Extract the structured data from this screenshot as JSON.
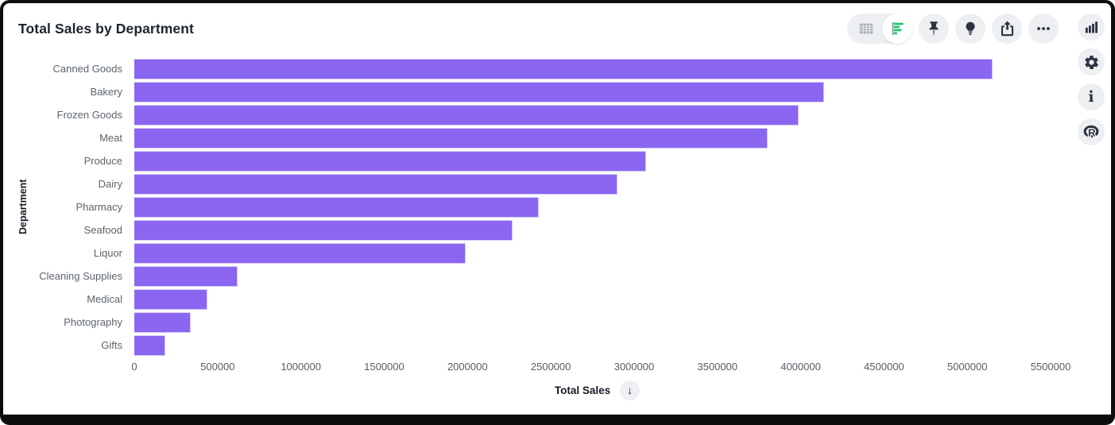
{
  "card": {
    "title": "Total Sales by Department"
  },
  "toolbar": {
    "view_toggle": [
      {
        "icon": "table-view-icon",
        "selected": false
      },
      {
        "icon": "bar-chart-view-icon",
        "selected": true
      }
    ],
    "buttons": [
      {
        "icon": "pin-icon"
      },
      {
        "icon": "lightbulb-icon"
      },
      {
        "icon": "share-icon"
      },
      {
        "icon": "more-options-icon"
      }
    ]
  },
  "right_rail": {
    "buttons": [
      {
        "icon": "column-chart-icon"
      },
      {
        "icon": "settings-gear-icon"
      },
      {
        "icon": "info-icon",
        "glyph": "i"
      },
      {
        "icon": "r-logo-icon"
      }
    ]
  },
  "chart_data": {
    "type": "bar",
    "orientation": "horizontal",
    "title": "Total Sales by Department",
    "xlabel": "Total Sales",
    "ylabel": "Department",
    "xlim": [
      0,
      5500000
    ],
    "x_ticks": [
      0,
      500000,
      1000000,
      1500000,
      2000000,
      2500000,
      3000000,
      3500000,
      4000000,
      4500000,
      5000000,
      5500000
    ],
    "categories": [
      "Canned Goods",
      "Bakery",
      "Frozen Goods",
      "Meat",
      "Produce",
      "Dairy",
      "Pharmacy",
      "Seafood",
      "Liquor",
      "Cleaning Supplies",
      "Medical",
      "Photography",
      "Gifts"
    ],
    "values": [
      5150000,
      4140000,
      3990000,
      3800000,
      3070000,
      2900000,
      2430000,
      2270000,
      1990000,
      620000,
      440000,
      340000,
      185000
    ],
    "bar_color": "#8b66f0",
    "grid": false,
    "legend": null,
    "sort": {
      "by": "Total Sales",
      "direction": "descending",
      "glyph": "↓"
    }
  },
  "colors": {
    "accent_purple": "#8b66f0",
    "icon_dark": "#2b3340",
    "icon_green": "#1fc36c",
    "icon_gray": "#a6adb6",
    "circle_bg": "#edeff2",
    "axis_text": "#5c646d",
    "title_text": "#1d2430"
  }
}
